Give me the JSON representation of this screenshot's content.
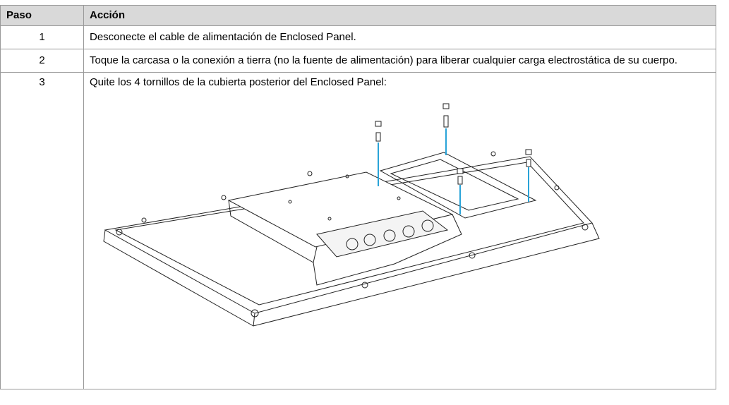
{
  "table": {
    "header": [
      "Paso",
      "Acción"
    ],
    "rows": [
      [
        "1",
        "Desconecte el cable de alimentación de Enclosed Panel."
      ],
      [
        "2",
        "Toque la carcasa o la conexión a tierra (no la fuente de alimentación) para liberar cualquier carga electrostática de su cuerpo."
      ],
      [
        "3",
        "Quite los 4 tornillos de la cubierta posterior del Enclosed Panel:"
      ]
    ]
  }
}
